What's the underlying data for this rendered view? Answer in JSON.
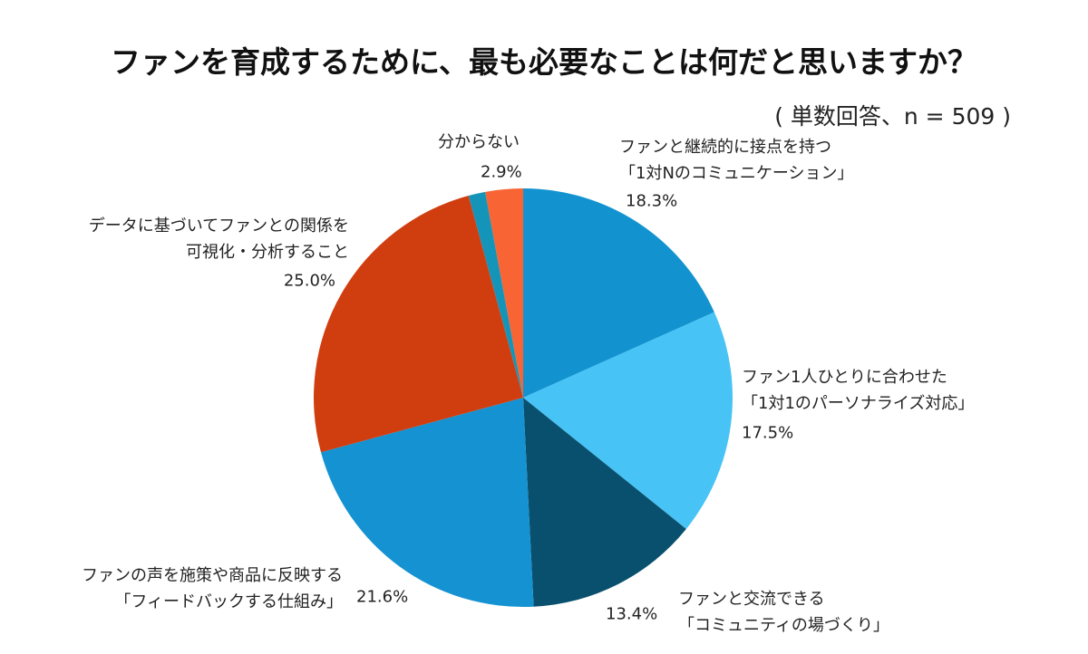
{
  "chart_data": {
    "type": "pie",
    "title": "ファンを育成するために、最も必要なことは何だと思いますか？",
    "subtitle": "( 単数回答、n = 509 )",
    "categories": [
      "ファンと継続的に接点を持つ\n「1対Nのコミュニケーション」",
      "ファン1人ひとりに合わせた\n「1対1のパーソナライズ対応」",
      "ファンと交流できる\n「コミュニティの場づくり」",
      "ファンの声を施策や商品に反映する\n「フィードバックする仕組み」",
      "データに基づいてファンとの関係を\n可視化・分析すること",
      null,
      "分からない"
    ],
    "values": [
      18.3,
      17.5,
      13.4,
      21.6,
      25.0,
      1.3,
      2.9
    ],
    "value_labels": [
      "18.3%",
      "17.5%",
      "13.4%",
      "21.6%",
      "25.0%",
      null,
      "2.9%"
    ],
    "colors": [
      "#1293d0",
      "#47c3f5",
      "#08506e",
      "#1492d1",
      "#d03e10",
      "#1494b8",
      "#f86433"
    ]
  }
}
